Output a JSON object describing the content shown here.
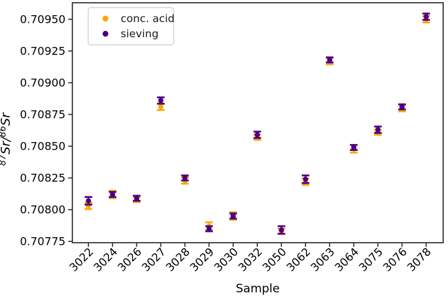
{
  "figure": {
    "background": "#ffffff",
    "spine_color": "#262626",
    "text_color": "#000000",
    "legend_border_color": "#cccccc"
  },
  "chart_data": {
    "type": "scatter",
    "title": "",
    "xlabel": "Sample",
    "ylabel": "87Sr/86Sr",
    "ylabel_segments": [
      {
        "text": "87",
        "sup": true
      },
      {
        "text": "Sr/",
        "sup": false
      },
      {
        "text": "86",
        "sup": true
      },
      {
        "text": "Sr",
        "sup": false
      }
    ],
    "categories": [
      "3022",
      "3024",
      "3026",
      "3027",
      "3028",
      "3029",
      "3030",
      "3032",
      "3050",
      "3062",
      "3063",
      "3064",
      "3075",
      "3076",
      "3078"
    ],
    "series": [
      {
        "name": "conc. acid",
        "color": "#FFA500",
        "marker": "circle",
        "values": [
          0.70803,
          0.70812,
          0.70808,
          0.70881,
          0.70823,
          0.70787,
          0.70795,
          0.70857,
          0.70783,
          0.70822,
          0.70917,
          0.70848,
          0.70861,
          0.7088,
          0.7095
        ],
        "errors": [
          2.5e-05,
          3e-05,
          2e-05,
          2.5e-05,
          2.5e-05,
          3e-05,
          3e-05,
          2e-05,
          2e-05,
          2.5e-05,
          2.5e-05,
          3e-05,
          2e-05,
          2.5e-05,
          2.5e-05
        ]
      },
      {
        "name": "sieving",
        "color": "#4B0082",
        "marker": "circle",
        "values": [
          0.70807,
          0.70812,
          0.70809,
          0.70886,
          0.70825,
          0.70785,
          0.70795,
          0.70859,
          0.70784,
          0.70824,
          0.70918,
          0.70849,
          0.70863,
          0.70881,
          0.70952
        ],
        "errors": [
          3e-05,
          2e-05,
          2e-05,
          2.5e-05,
          2e-05,
          2e-05,
          2e-05,
          2.5e-05,
          3e-05,
          3e-05,
          2e-05,
          2e-05,
          2.5e-05,
          2e-05,
          2.5e-05
        ]
      }
    ],
    "yticks": [
      0.70775,
      0.708,
      0.70825,
      0.7085,
      0.70875,
      0.709,
      0.70925,
      0.7095
    ],
    "ytick_decimals": 5,
    "ylim": [
      0.70774,
      0.70963
    ],
    "xtick_rotation": 45,
    "grid": false,
    "error_bars": true,
    "legend_position": "upper left"
  }
}
